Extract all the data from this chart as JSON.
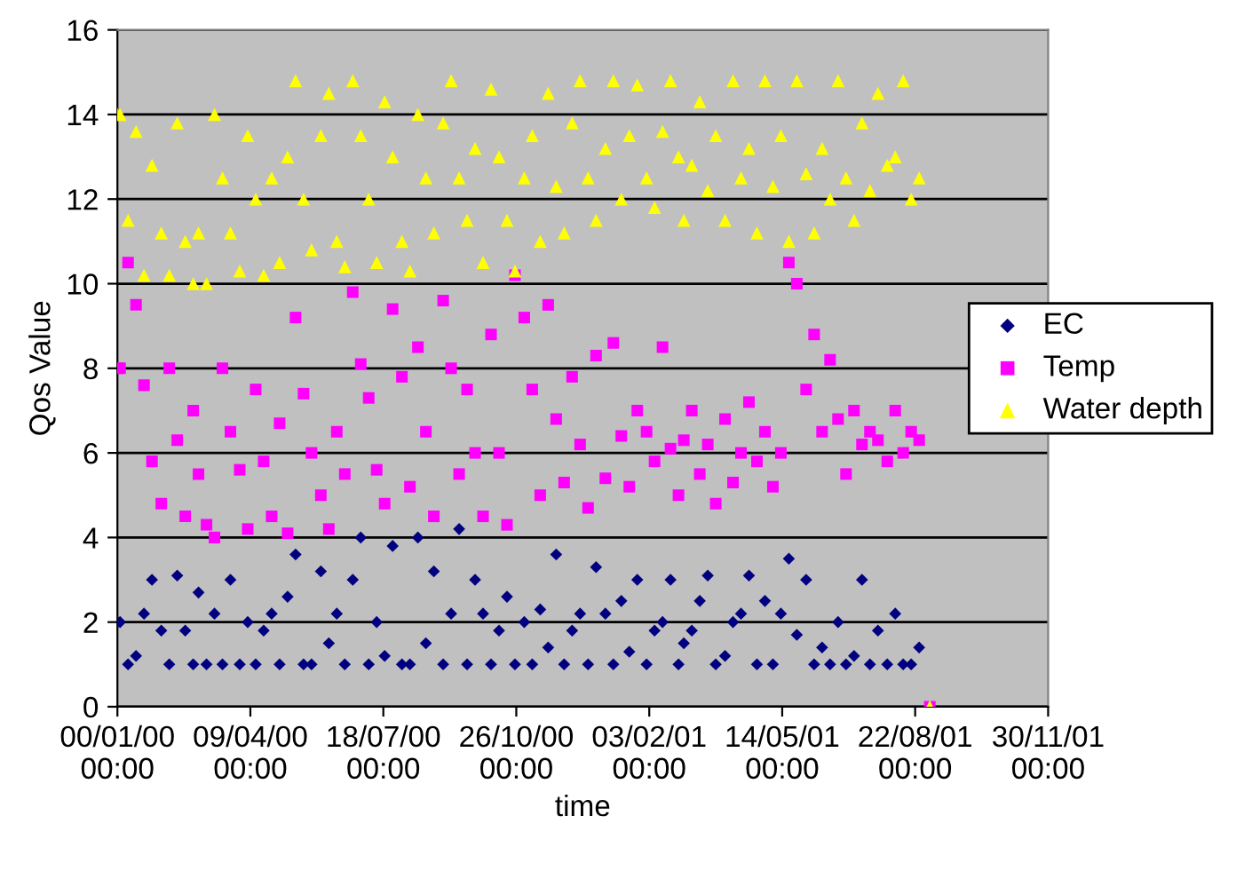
{
  "chart_data": {
    "type": "scatter",
    "xlabel": "time",
    "ylabel": "Qos Value",
    "xlim": [
      "1899-12-30",
      "1901-11-30"
    ],
    "ylim": [
      0,
      16
    ],
    "xticks": [
      {
        "value": "1899-12-30",
        "label": "00/01/00\n00:00"
      },
      {
        "value": "1900-04-09",
        "label": "09/04/00\n00:00"
      },
      {
        "value": "1900-07-18",
        "label": "18/07/00\n00:00"
      },
      {
        "value": "1900-10-26",
        "label": "26/10/00\n00:00"
      },
      {
        "value": "1901-02-03",
        "label": "03/02/01\n00:00"
      },
      {
        "value": "1901-05-14",
        "label": "14/05/01\n00:00"
      },
      {
        "value": "1901-08-22",
        "label": "22/08/01\n00:00"
      },
      {
        "value": "1901-11-30",
        "label": "30/11/01\n00:00"
      }
    ],
    "yticks": [
      0,
      2,
      4,
      6,
      8,
      10,
      12,
      14,
      16
    ],
    "grid": "y",
    "legend": "right",
    "x": [
      "1899-12-30",
      "1900-01-01",
      "1900-01-07",
      "1900-01-13",
      "1900-01-19",
      "1900-01-25",
      "1900-02-01",
      "1900-02-07",
      "1900-02-13",
      "1900-02-19",
      "1900-02-25",
      "1900-03-01",
      "1900-03-07",
      "1900-03-13",
      "1900-03-19",
      "1900-03-25",
      "1900-04-01",
      "1900-04-07",
      "1900-04-13",
      "1900-04-19",
      "1900-04-25",
      "1900-05-01",
      "1900-05-07",
      "1900-05-13",
      "1900-05-19",
      "1900-05-25",
      "1900-06-01",
      "1900-06-07",
      "1900-06-13",
      "1900-06-19",
      "1900-06-25",
      "1900-07-01",
      "1900-07-07",
      "1900-07-13",
      "1900-07-19",
      "1900-07-25",
      "1900-08-01",
      "1900-08-07",
      "1900-08-13",
      "1900-08-19",
      "1900-08-25",
      "1900-09-01",
      "1900-09-07",
      "1900-09-13",
      "1900-09-19",
      "1900-09-25",
      "1900-10-01",
      "1900-10-07",
      "1900-10-13",
      "1900-10-19",
      "1900-10-25",
      "1900-11-01",
      "1900-11-07",
      "1900-11-13",
      "1900-11-19",
      "1900-11-25",
      "1900-12-01",
      "1900-12-07",
      "1900-12-13",
      "1900-12-19",
      "1900-12-25",
      "1901-01-01",
      "1901-01-07",
      "1901-01-13",
      "1901-01-19",
      "1901-01-25",
      "1901-02-01",
      "1901-02-07",
      "1901-02-13",
      "1901-02-19",
      "1901-02-25",
      "1901-03-01",
      "1901-03-07",
      "1901-03-13",
      "1901-03-19",
      "1901-03-25",
      "1901-04-01",
      "1901-04-07",
      "1901-04-13",
      "1901-04-19",
      "1901-04-25",
      "1901-05-01",
      "1901-05-07",
      "1901-05-13",
      "1901-05-19",
      "1901-05-25",
      "1901-06-01",
      "1901-06-07",
      "1901-06-13",
      "1901-06-19",
      "1901-06-25",
      "1901-07-01",
      "1901-07-07",
      "1901-07-13",
      "1901-07-19",
      "1901-07-25",
      "1901-08-01",
      "1901-08-07",
      "1901-08-13",
      "1901-08-19",
      "1901-08-25",
      "1901-09-02"
    ],
    "series": [
      {
        "name": "EC",
        "color": "#000080",
        "marker": "diamond",
        "values": [
          2,
          2,
          1,
          1.2,
          2.2,
          3,
          1.8,
          1,
          3.1,
          1.8,
          1,
          2.7,
          1,
          2.2,
          1,
          3,
          1,
          2,
          1,
          1.8,
          2.2,
          1,
          2.6,
          3.6,
          1,
          1,
          3.2,
          1.5,
          2.2,
          1,
          3,
          4,
          1,
          2,
          1.2,
          3.8,
          1,
          1,
          4,
          1.5,
          3.2,
          1,
          2.2,
          4.2,
          1,
          3,
          2.2,
          1,
          1.8,
          2.6,
          1,
          2,
          1,
          2.3,
          1.4,
          3.6,
          1,
          1.8,
          2.2,
          1,
          3.3,
          2.2,
          1,
          2.5,
          1.3,
          3,
          1,
          1.8,
          2,
          3,
          1,
          1.5,
          1.8,
          2.5,
          3.1,
          1,
          1.2,
          2,
          2.2,
          3.1,
          1,
          2.5,
          1,
          2.2,
          3.5,
          1.7,
          3,
          1,
          1.4,
          1,
          2,
          1,
          1.2,
          3,
          1,
          1.8,
          1,
          2.2,
          1,
          1,
          1.4,
          null
        ]
      },
      {
        "name": "Temp",
        "color": "#ff00ff",
        "marker": "square",
        "values": [
          8,
          8,
          10.5,
          9.5,
          7.6,
          5.8,
          4.8,
          8,
          6.3,
          4.5,
          7,
          5.5,
          4.3,
          4,
          8,
          6.5,
          5.6,
          4.2,
          7.5,
          5.8,
          4.5,
          6.7,
          4.1,
          9.2,
          7.4,
          6,
          5,
          4.2,
          6.5,
          5.5,
          9.8,
          8.1,
          7.3,
          5.6,
          4.8,
          9.4,
          7.8,
          5.2,
          8.5,
          6.5,
          4.5,
          9.6,
          8,
          5.5,
          7.5,
          6,
          4.5,
          8.8,
          6,
          4.3,
          10.2,
          9.2,
          7.5,
          5,
          9.5,
          6.8,
          5.3,
          7.8,
          6.2,
          4.7,
          8.3,
          5.4,
          8.6,
          6.4,
          5.2,
          7,
          6.5,
          5.8,
          8.5,
          6.1,
          5,
          6.3,
          7,
          5.5,
          6.2,
          4.8,
          6.8,
          5.3,
          6,
          7.2,
          5.8,
          6.5,
          5.2,
          6,
          10.5,
          10,
          7.5,
          8.8,
          6.5,
          8.2,
          6.8,
          5.5,
          7,
          6.2,
          6.5,
          6.3,
          5.8,
          7,
          6,
          6.5,
          6.3,
          0
        ]
      },
      {
        "name": "Water depth",
        "color": "#ffff00",
        "marker": "triangle",
        "values": [
          14,
          14,
          11.5,
          13.6,
          10.2,
          12.8,
          11.2,
          10.2,
          13.8,
          11,
          10,
          11.2,
          10,
          14,
          12.5,
          11.2,
          10.3,
          13.5,
          12,
          10.2,
          12.5,
          10.5,
          13,
          14.8,
          12,
          10.8,
          13.5,
          14.5,
          11,
          10.4,
          14.8,
          13.5,
          12,
          10.5,
          14.3,
          13,
          11,
          10.3,
          14,
          12.5,
          11.2,
          13.8,
          14.8,
          12.5,
          11.5,
          13.2,
          10.5,
          14.6,
          13,
          11.5,
          10.3,
          12.5,
          13.5,
          11,
          14.5,
          12.3,
          11.2,
          13.8,
          14.8,
          12.5,
          11.5,
          13.2,
          14.8,
          12,
          13.5,
          14.7,
          12.5,
          11.8,
          13.6,
          14.8,
          13,
          11.5,
          12.8,
          14.3,
          12.2,
          13.5,
          11.5,
          14.8,
          12.5,
          13.2,
          11.2,
          14.8,
          12.3,
          13.5,
          11,
          14.8,
          12.6,
          11.2,
          13.2,
          12,
          14.8,
          12.5,
          11.5,
          13.8,
          12.2,
          14.5,
          12.8,
          13,
          14.8,
          12,
          12.5,
          0
        ]
      }
    ]
  }
}
